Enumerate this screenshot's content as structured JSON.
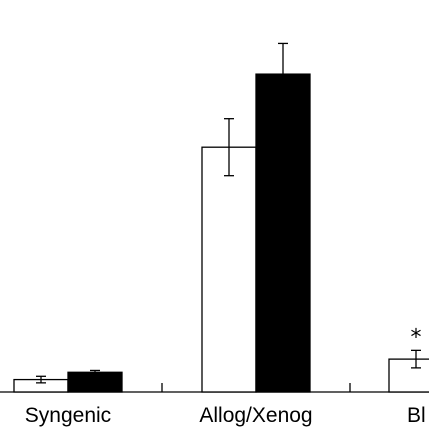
{
  "chart_data": {
    "type": "bar",
    "categories": [
      "Syngenic",
      "Allog/Xenog",
      "Bl"
    ],
    "series": [
      {
        "fill": "#ffffff",
        "values": [
          1.7,
          33.5,
          4.5
        ],
        "errors": [
          0.45,
          3.9,
          1.2
        ]
      },
      {
        "fill": "#000000",
        "values": [
          2.7,
          43.5,
          null
        ],
        "errors": [
          0.25,
          4.2,
          null
        ]
      }
    ],
    "annotations": [
      {
        "category": "Bl",
        "series": 0,
        "text": "*"
      }
    ],
    "ylim": [
      0,
      52
    ],
    "grid": false,
    "legend": "none",
    "colors": {
      "axis": "#000000",
      "outline": "#000000"
    }
  }
}
